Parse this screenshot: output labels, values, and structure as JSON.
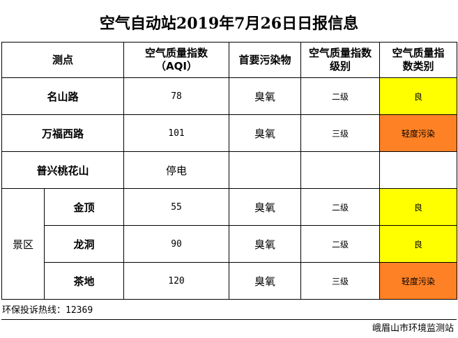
{
  "title": "空气自动站2019年7月26日日报信息",
  "headers": {
    "site": "测点",
    "aqi_line1": "空气质量指数",
    "aqi_line2": "（AQI）",
    "pollutant": "首要污染物",
    "level_line1": "空气质量指数",
    "level_line2": "级别",
    "category_line1": "空气质量指",
    "category_line2": "数类别"
  },
  "rows": [
    {
      "site": "名山路",
      "aqi": "78",
      "pollutant": "臭氧",
      "level": "二级",
      "category": "良"
    },
    {
      "site": "万福西路",
      "aqi": "101",
      "pollutant": "臭氧",
      "level": "三级",
      "category": "轻度污染"
    },
    {
      "site": "普兴桃花山",
      "aqi": "停电",
      "pollutant": "",
      "level": "",
      "category": ""
    }
  ],
  "scenic_group": "景区",
  "scenic_rows": [
    {
      "site": "金顶",
      "aqi": "55",
      "pollutant": "臭氧",
      "level": "二级",
      "category": "良"
    },
    {
      "site": "龙洞",
      "aqi": "90",
      "pollutant": "臭氧",
      "level": "二级",
      "category": "良"
    },
    {
      "site": "茶地",
      "aqi": "120",
      "pollutant": "臭氧",
      "level": "三级",
      "category": "轻度污染"
    }
  ],
  "hotline_label": "环保投诉热线：",
  "hotline_number": "12369",
  "agency": "峨眉山市环境监测站",
  "colors": {
    "good": "#ffff00",
    "light_pollution": "#ff8125"
  }
}
